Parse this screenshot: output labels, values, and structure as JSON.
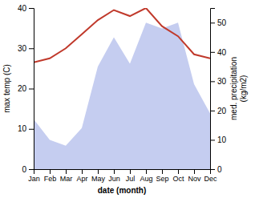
{
  "chart_data": {
    "type": "line",
    "categories": [
      "Jan",
      "Feb",
      "Mar",
      "Apr",
      "May",
      "Jun",
      "Jul",
      "Aug",
      "Sep",
      "Oct",
      "Nov",
      "Dec"
    ],
    "xlabel": "date (month)",
    "ylabel": "max temp (C)",
    "y2label": "med. precipitation\n(kg/m2)",
    "ylim": [
      0,
      40
    ],
    "yticks": [
      0,
      10,
      20,
      30,
      40
    ],
    "y2lim": [
      0,
      55
    ],
    "y2ticks": [
      0,
      10,
      20,
      30,
      40,
      50
    ],
    "series": [
      {
        "type": "area",
        "axis": "y2",
        "color": "#c5cdf0",
        "values": [
          17,
          10,
          8,
          14,
          35,
          45,
          36,
          50,
          48,
          50,
          29,
          19
        ]
      },
      {
        "type": "line",
        "color": "#c0392b",
        "values": [
          26.5,
          27.5,
          30.0,
          33.5,
          37.0,
          39.5,
          38.0,
          40.0,
          35.5,
          33.0,
          28.5,
          27.5
        ]
      }
    ]
  }
}
